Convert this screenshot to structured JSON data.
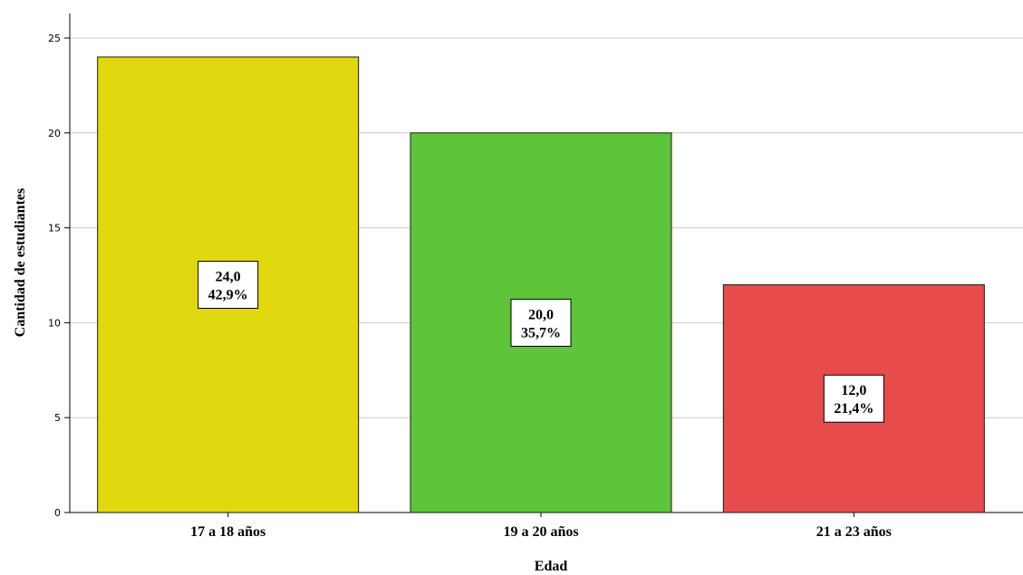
{
  "chart_data": {
    "type": "bar",
    "xlabel": "Edad",
    "ylabel": "Cantidad de estudiantes",
    "categories": [
      "17 a 18 años",
      "19 a 20 años",
      "21 a 23 años"
    ],
    "values": [
      24,
      20,
      12
    ],
    "value_labels": [
      "24,0",
      "20,0",
      "12,0"
    ],
    "percent_labels": [
      "42,9%",
      "35,7%",
      "21,4%"
    ],
    "colors": [
      "#e2d80f",
      "#5ec43a",
      "#e84b4b"
    ],
    "ylim": [
      0,
      26
    ],
    "yticks": [
      0,
      5,
      10,
      15,
      20,
      25
    ],
    "grid": true
  }
}
